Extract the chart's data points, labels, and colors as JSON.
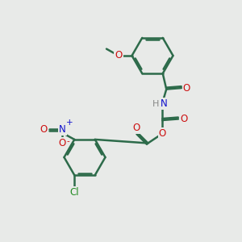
{
  "background_color": "#e8eae8",
  "bond_color": "#2d6b4a",
  "bond_width": 1.8,
  "atom_colors": {
    "C": "#2d6b4a",
    "H": "#888888",
    "N": "#1010cc",
    "O": "#cc1010",
    "Cl": "#228B22"
  },
  "font_size": 8.5
}
